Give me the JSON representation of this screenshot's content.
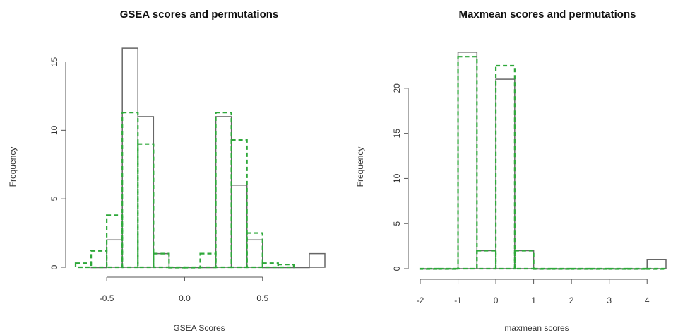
{
  "colors": {
    "observed": "#666666",
    "permutations": "#2ea83a",
    "axis": "#555555"
  },
  "chart_data": [
    {
      "type": "bar",
      "title": "GSEA scores and permutations",
      "xlabel": "GSEA Scores",
      "ylabel": "Frequency",
      "xlim": [
        -0.7,
        0.9
      ],
      "ylim": [
        0,
        15.8
      ],
      "xticks": [
        -0.5,
        0.0,
        0.5
      ],
      "xtick_labels": [
        "-0.5",
        "0.0",
        "0.5"
      ],
      "yticks": [
        0,
        5,
        10,
        15
      ],
      "ytick_labels": [
        "0",
        "5",
        "10",
        "15"
      ],
      "series": [
        {
          "style": "solid",
          "bins": [
            [
              -0.6,
              -0.5,
              0
            ],
            [
              -0.5,
              -0.4,
              2
            ],
            [
              -0.4,
              -0.3,
              16
            ],
            [
              -0.3,
              -0.2,
              11
            ],
            [
              -0.2,
              -0.1,
              1
            ],
            [
              -0.1,
              0.0,
              0
            ],
            [
              0.0,
              0.1,
              0
            ],
            [
              0.1,
              0.2,
              0
            ],
            [
              0.2,
              0.3,
              11
            ],
            [
              0.3,
              0.4,
              6
            ],
            [
              0.4,
              0.5,
              2
            ],
            [
              0.5,
              0.6,
              0
            ],
            [
              0.6,
              0.7,
              0
            ],
            [
              0.7,
              0.8,
              0
            ],
            [
              0.8,
              0.9,
              1
            ]
          ]
        },
        {
          "style": "dashed",
          "bins": [
            [
              -0.7,
              -0.6,
              0.3
            ],
            [
              -0.6,
              -0.5,
              1.2
            ],
            [
              -0.5,
              -0.4,
              3.8
            ],
            [
              -0.4,
              -0.3,
              11.3
            ],
            [
              -0.3,
              -0.2,
              9
            ],
            [
              -0.2,
              -0.1,
              1
            ],
            [
              -0.1,
              0.0,
              0
            ],
            [
              0.0,
              0.1,
              0
            ],
            [
              0.1,
              0.2,
              1
            ],
            [
              0.2,
              0.3,
              11.3
            ],
            [
              0.3,
              0.4,
              9.3
            ],
            [
              0.4,
              0.5,
              2.5
            ],
            [
              0.5,
              0.6,
              0.3
            ],
            [
              0.6,
              0.7,
              0.2
            ]
          ]
        }
      ]
    },
    {
      "type": "bar",
      "title": "Maxmean scores and permutations",
      "xlabel": "maxmean scores",
      "ylabel": "Frequency",
      "xlim": [
        -2,
        4.5
      ],
      "ylim": [
        0,
        24.3
      ],
      "xticks": [
        -2,
        -1,
        0,
        1,
        2,
        3,
        4
      ],
      "xtick_labels": [
        "-2",
        "-1",
        "0",
        "1",
        "2",
        "3",
        "4"
      ],
      "yticks": [
        0,
        5,
        10,
        15,
        20
      ],
      "ytick_labels": [
        "0",
        "5",
        "10",
        "15",
        "20"
      ],
      "series": [
        {
          "style": "solid",
          "bins": [
            [
              -2,
              -1.5,
              0
            ],
            [
              -1.5,
              -1,
              0
            ],
            [
              -1,
              -0.5,
              24
            ],
            [
              -0.5,
              0,
              2
            ],
            [
              0,
              0.5,
              21
            ],
            [
              0.5,
              1,
              2
            ],
            [
              1,
              1.5,
              0
            ],
            [
              1.5,
              2,
              0
            ],
            [
              2,
              2.5,
              0
            ],
            [
              2.5,
              3,
              0
            ],
            [
              3,
              3.5,
              0
            ],
            [
              3.5,
              4,
              0
            ],
            [
              4,
              4.5,
              1
            ]
          ]
        },
        {
          "style": "dashed",
          "bins": [
            [
              -2,
              -1.5,
              0
            ],
            [
              -1.5,
              -1,
              0
            ],
            [
              -1,
              -0.5,
              23.5
            ],
            [
              -0.5,
              0,
              2
            ],
            [
              0,
              0.5,
              22.5
            ],
            [
              0.5,
              1,
              2
            ],
            [
              1,
              1.5,
              0
            ],
            [
              1.5,
              2,
              0
            ],
            [
              2,
              2.5,
              0
            ],
            [
              2.5,
              3,
              0
            ],
            [
              3,
              3.5,
              0
            ],
            [
              3.5,
              4,
              0
            ],
            [
              4,
              4.5,
              0
            ]
          ]
        }
      ]
    }
  ]
}
